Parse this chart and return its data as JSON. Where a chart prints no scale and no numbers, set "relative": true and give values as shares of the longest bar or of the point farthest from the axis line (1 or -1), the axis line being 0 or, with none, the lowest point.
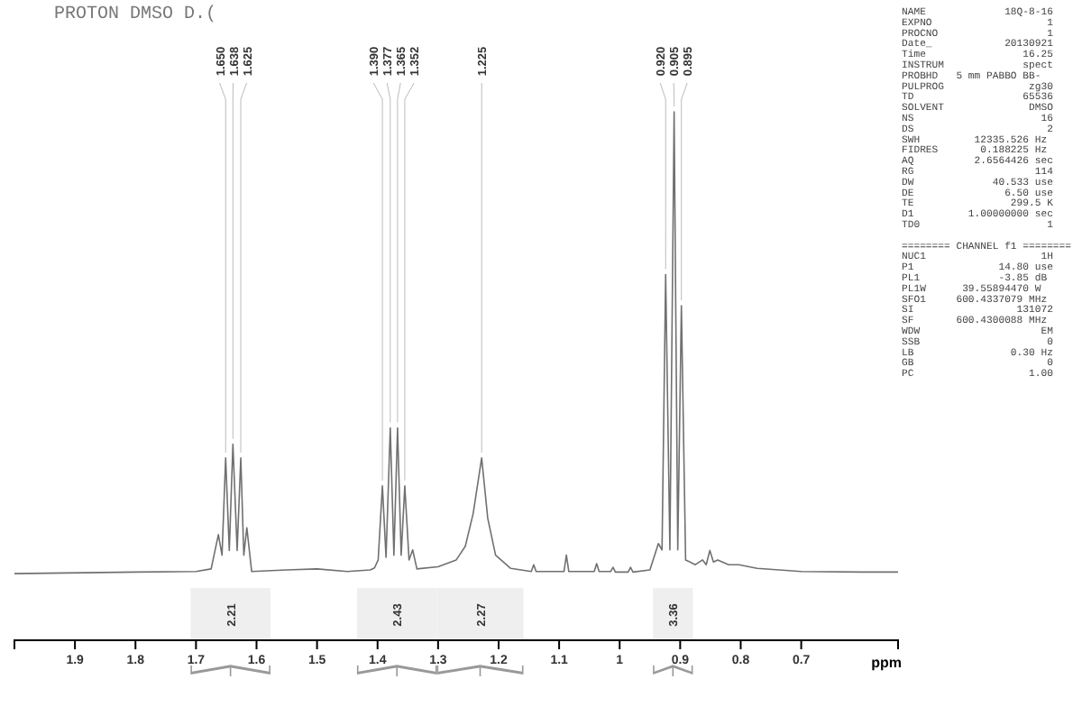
{
  "chart_data": [
    {
      "type": "line",
      "title": "PROTON DMSO D.(",
      "xlabel": "ppm",
      "relative": true,
      "xlim": [
        2.0,
        0.54
      ],
      "xticks": [
        1.9,
        1.8,
        1.7,
        1.6,
        1.5,
        1.4,
        1.3,
        1.2,
        1.1,
        1.0,
        0.9,
        0.8,
        0.7
      ],
      "grid": false,
      "marker": "none",
      "line_style": "solid",
      "series": [
        {
          "color": "#707070",
          "x": [
            2.0,
            1.8,
            1.7,
            1.675,
            1.663,
            1.657,
            1.651,
            1.645,
            1.639,
            1.632,
            1.626,
            1.621,
            1.616,
            1.608,
            1.55,
            1.5,
            1.45,
            1.412,
            1.405,
            1.399,
            1.392,
            1.386,
            1.379,
            1.373,
            1.367,
            1.361,
            1.355,
            1.348,
            1.342,
            1.335,
            1.3,
            1.27,
            1.255,
            1.242,
            1.228,
            1.218,
            1.205,
            1.18,
            1.146,
            1.142,
            1.138,
            1.092,
            1.088,
            1.084,
            1.042,
            1.038,
            1.034,
            1.015,
            1.011,
            1.007,
            0.986,
            0.982,
            0.978,
            0.95,
            0.936,
            0.93,
            0.924,
            0.917,
            0.91,
            0.904,
            0.898,
            0.891,
            0.875,
            0.863,
            0.857,
            0.851,
            0.845,
            0.838,
            0.82,
            0.803,
            0.773,
            0.7,
            0.6,
            0.54
          ],
          "values": [
            0.126,
            0.129,
            0.13,
            0.135,
            0.2,
            0.161,
            0.345,
            0.17,
            0.371,
            0.17,
            0.345,
            0.161,
            0.213,
            0.13,
            0.133,
            0.135,
            0.13,
            0.133,
            0.137,
            0.152,
            0.292,
            0.157,
            0.402,
            0.161,
            0.402,
            0.161,
            0.292,
            0.152,
            0.171,
            0.135,
            0.139,
            0.152,
            0.178,
            0.24,
            0.345,
            0.231,
            0.161,
            0.136,
            0.13,
            0.143,
            0.13,
            0.13,
            0.161,
            0.13,
            0.13,
            0.145,
            0.13,
            0.13,
            0.138,
            0.129,
            0.129,
            0.138,
            0.129,
            0.133,
            0.183,
            0.171,
            0.692,
            0.171,
            1,
            0.171,
            0.633,
            0.152,
            0.143,
            0.152,
            0.143,
            0.17,
            0.148,
            0.152,
            0.143,
            0.143,
            0.136,
            0.13,
            0.129,
            0.129
          ]
        }
      ],
      "annotations": [
        {
          "text": "1.650",
          "x": 1.651,
          "y": 0.345
        },
        {
          "text": "1.638",
          "x": 1.639,
          "y": 0.371
        },
        {
          "text": "1.625",
          "x": 1.626,
          "y": 0.345
        },
        {
          "text": "1.390",
          "x": 1.392,
          "y": 0.292
        },
        {
          "text": "1.377",
          "x": 1.379,
          "y": 0.402
        },
        {
          "text": "1.365",
          "x": 1.367,
          "y": 0.402
        },
        {
          "text": "1.352",
          "x": 1.355,
          "y": 0.292
        },
        {
          "text": "1.225",
          "x": 1.228,
          "y": 0.345
        },
        {
          "text": "0.920",
          "x": 0.924,
          "y": 0.692
        },
        {
          "text": "0.905",
          "x": 0.91,
          "y": 1
        },
        {
          "text": "0.895",
          "x": 0.898,
          "y": 0.633
        }
      ],
      "bands": [
        {
          "axis": "x",
          "from": 1.709,
          "to": 1.577,
          "label": "2.21"
        },
        {
          "axis": "x",
          "from": 1.434,
          "to": 1.302,
          "label": "2.43"
        },
        {
          "axis": "x",
          "from": 1.302,
          "to": 1.159,
          "label": "2.27"
        },
        {
          "axis": "x",
          "from": 0.945,
          "to": 0.879,
          "label": "3.36"
        }
      ]
    },
    {
      "type": "other",
      "annotations": [
        "NAME             18Q-8-16",
        "EXPNO                   1",
        "PROCNO                  1",
        "Date_            20130921",
        "Time                16.25",
        "INSTRUM             spect",
        "PROBHD   5 mm PABBO BB-",
        "PULPROG              zg30",
        "TD                  65536",
        "SOLVENT              DMSO",
        "NS                     16",
        "DS                      2",
        "SWH         12335.526 Hz",
        "FIDRES       0.188225 Hz",
        "AQ          2.6564426 sec",
        "RG                    114",
        "DW             40.533 use",
        "DE               6.50 use",
        "TE                299.5 K",
        "D1         1.00000000 sec",
        "TD0                     1",
        "======== CHANNEL f1 ========",
        "NUC1                   1H",
        "P1              14.80 use",
        "PL1             -3.85 dB",
        "PL1W      39.55894470 W",
        "SFO1     600.4337079 MHz",
        "SI                 131072",
        "SF       600.4300088 MHz",
        "WDW                    EM",
        "SSB                     0",
        "LB                0.30 Hz",
        "GB                      0",
        "PC                   1.00"
      ]
    }
  ]
}
